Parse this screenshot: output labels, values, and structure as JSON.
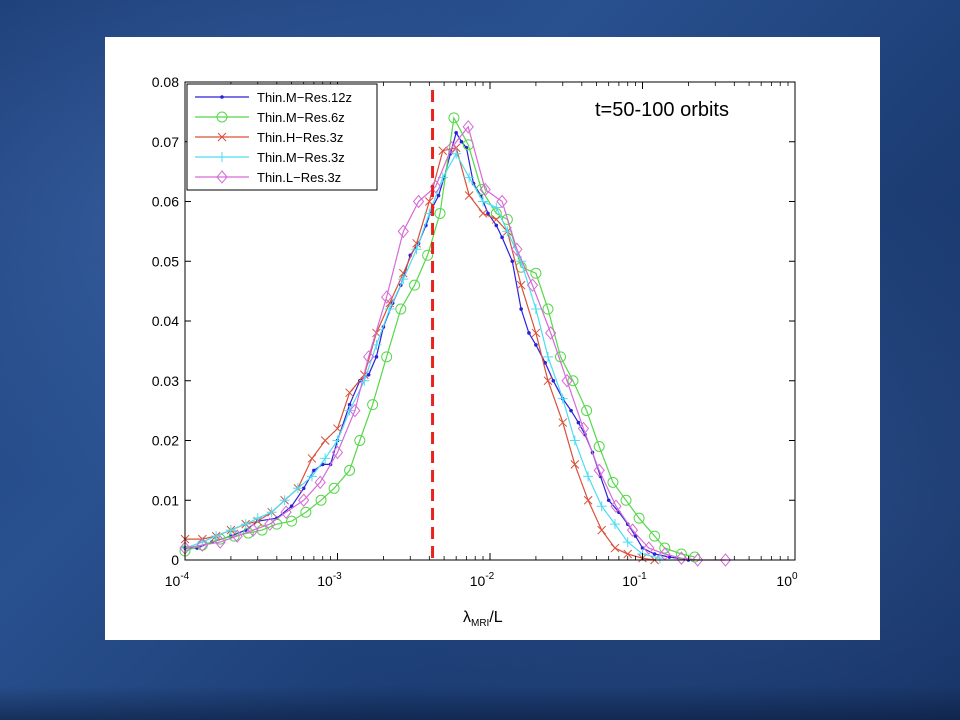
{
  "background": {
    "theme": "blue-textured-slide",
    "panel_color": "#ffffff"
  },
  "chart_data": {
    "type": "line",
    "title": "",
    "annotation": "t=50-100 orbits",
    "xlabel_main": "λ",
    "xlabel_sub": "MRI",
    "xlabel_suffix": "/L",
    "ylabel": "",
    "x_scale": "log",
    "xlim": [
      0.0001,
      1
    ],
    "ylim": [
      0,
      0.08
    ],
    "y_ticks": [
      "0",
      "0.01",
      "0.02",
      "0.03",
      "0.04",
      "0.05",
      "0.06",
      "0.07",
      "0.08"
    ],
    "x_ticks": [
      {
        "base": "10",
        "exp": "-4"
      },
      {
        "base": "10",
        "exp": "-3"
      },
      {
        "base": "10",
        "exp": "-2"
      },
      {
        "base": "10",
        "exp": "-1"
      },
      {
        "base": "10",
        "exp": "0"
      }
    ],
    "vline": {
      "x": 0.0042,
      "color": "#e8231d",
      "style": "dashed"
    },
    "legend_location": "top-left",
    "series": [
      {
        "name": "Thin.M−Res.12z",
        "color": "#2a22d8",
        "marker": "dot",
        "x": [
          0.0001,
          0.00012,
          0.00015,
          0.0002,
          0.00025,
          0.0003,
          0.0004,
          0.0005,
          0.0006,
          0.0007,
          0.0008,
          0.0009,
          0.001,
          0.0012,
          0.0014,
          0.0016,
          0.0018,
          0.002,
          0.0023,
          0.0026,
          0.003,
          0.0034,
          0.0038,
          0.0042,
          0.0046,
          0.005,
          0.0055,
          0.006,
          0.0065,
          0.007,
          0.0078,
          0.0087,
          0.0097,
          0.011,
          0.012,
          0.014,
          0.016,
          0.018,
          0.02,
          0.023,
          0.026,
          0.03,
          0.034,
          0.038,
          0.042,
          0.047,
          0.053,
          0.06,
          0.07,
          0.08,
          0.09,
          0.1,
          0.12,
          0.15,
          0.2
        ],
        "y": [
          0.002,
          0.002,
          0.003,
          0.004,
          0.005,
          0.0065,
          0.007,
          0.009,
          0.012,
          0.015,
          0.016,
          0.016,
          0.02,
          0.026,
          0.03,
          0.031,
          0.034,
          0.039,
          0.043,
          0.046,
          0.051,
          0.053,
          0.056,
          0.059,
          0.061,
          0.064,
          0.068,
          0.0715,
          0.07,
          0.069,
          0.063,
          0.061,
          0.058,
          0.056,
          0.054,
          0.05,
          0.042,
          0.038,
          0.036,
          0.033,
          0.03,
          0.027,
          0.025,
          0.023,
          0.021,
          0.018,
          0.014,
          0.01,
          0.008,
          0.006,
          0.004,
          0.002,
          0.001,
          0.0005,
          0
        ]
      },
      {
        "name": "Thin.M−Res.6z",
        "color": "#55d84a",
        "marker": "circle",
        "x": [
          0.0001,
          0.00013,
          0.00017,
          0.00021,
          0.00026,
          0.00032,
          0.0004,
          0.0005,
          0.00062,
          0.00078,
          0.00095,
          0.0012,
          0.0014,
          0.0017,
          0.0021,
          0.0026,
          0.0032,
          0.0039,
          0.0047,
          0.0058,
          0.0072,
          0.0088,
          0.011,
          0.013,
          0.016,
          0.02,
          0.024,
          0.029,
          0.035,
          0.043,
          0.052,
          0.064,
          0.078,
          0.095,
          0.12,
          0.14,
          0.18,
          0.22
        ],
        "y": [
          0.0015,
          0.0025,
          0.0035,
          0.004,
          0.0045,
          0.005,
          0.006,
          0.0065,
          0.008,
          0.01,
          0.012,
          0.015,
          0.02,
          0.026,
          0.034,
          0.042,
          0.046,
          0.051,
          0.058,
          0.074,
          0.0695,
          0.062,
          0.058,
          0.057,
          0.049,
          0.048,
          0.042,
          0.034,
          0.03,
          0.025,
          0.019,
          0.013,
          0.01,
          0.007,
          0.004,
          0.002,
          0.001,
          0.0005
        ]
      },
      {
        "name": "Thin.H−Res.3z",
        "color": "#d9503a",
        "marker": "x",
        "x": [
          0.0001,
          0.00013,
          0.00016,
          0.0002,
          0.00025,
          0.0003,
          0.00037,
          0.00045,
          0.00055,
          0.00068,
          0.00083,
          0.001,
          0.0012,
          0.0015,
          0.0018,
          0.0022,
          0.0027,
          0.0033,
          0.004,
          0.0049,
          0.006,
          0.0073,
          0.009,
          0.011,
          0.013,
          0.016,
          0.02,
          0.024,
          0.03,
          0.036,
          0.044,
          0.054,
          0.066,
          0.08,
          0.1,
          0.12
        ],
        "y": [
          0.0035,
          0.0035,
          0.004,
          0.005,
          0.006,
          0.0065,
          0.008,
          0.01,
          0.012,
          0.017,
          0.02,
          0.022,
          0.028,
          0.031,
          0.038,
          0.043,
          0.048,
          0.053,
          0.06,
          0.0685,
          0.069,
          0.061,
          0.058,
          0.057,
          0.055,
          0.046,
          0.038,
          0.03,
          0.023,
          0.016,
          0.01,
          0.005,
          0.002,
          0.001,
          0.0003,
          0
        ]
      },
      {
        "name": "Thin.M−Res.3z",
        "color": "#4ddcf0",
        "marker": "plus",
        "x": [
          0.0001,
          0.00013,
          0.00016,
          0.0002,
          0.00025,
          0.0003,
          0.00037,
          0.00045,
          0.00055,
          0.00068,
          0.00083,
          0.001,
          0.0012,
          0.0015,
          0.0018,
          0.0022,
          0.0027,
          0.0033,
          0.004,
          0.0049,
          0.006,
          0.0073,
          0.009,
          0.011,
          0.013,
          0.016,
          0.02,
          0.024,
          0.03,
          0.036,
          0.044,
          0.054,
          0.066,
          0.08,
          0.1,
          0.13
        ],
        "y": [
          0.002,
          0.003,
          0.004,
          0.005,
          0.006,
          0.007,
          0.008,
          0.01,
          0.012,
          0.014,
          0.017,
          0.02,
          0.025,
          0.03,
          0.036,
          0.042,
          0.047,
          0.052,
          0.058,
          0.064,
          0.068,
          0.064,
          0.06,
          0.059,
          0.055,
          0.05,
          0.042,
          0.034,
          0.027,
          0.02,
          0.014,
          0.009,
          0.006,
          0.003,
          0.001,
          0.0003
        ]
      },
      {
        "name": "Thin.L−Res.3z",
        "color": "#d66ad6",
        "marker": "diamond",
        "x": [
          0.0001,
          0.00013,
          0.00017,
          0.00022,
          0.00028,
          0.00036,
          0.00046,
          0.0006,
          0.00077,
          0.001,
          0.0013,
          0.0016,
          0.0021,
          0.0027,
          0.0034,
          0.0044,
          0.0056,
          0.0072,
          0.0093,
          0.012,
          0.015,
          0.019,
          0.025,
          0.032,
          0.041,
          0.052,
          0.067,
          0.086,
          0.11,
          0.14,
          0.18,
          0.23,
          0.35
        ],
        "y": [
          0.002,
          0.0025,
          0.003,
          0.004,
          0.005,
          0.006,
          0.008,
          0.01,
          0.013,
          0.018,
          0.025,
          0.034,
          0.044,
          0.055,
          0.06,
          0.0625,
          0.069,
          0.0725,
          0.062,
          0.06,
          0.052,
          0.046,
          0.038,
          0.03,
          0.022,
          0.015,
          0.009,
          0.005,
          0.002,
          0.001,
          0.0003,
          0,
          0
        ]
      }
    ]
  }
}
